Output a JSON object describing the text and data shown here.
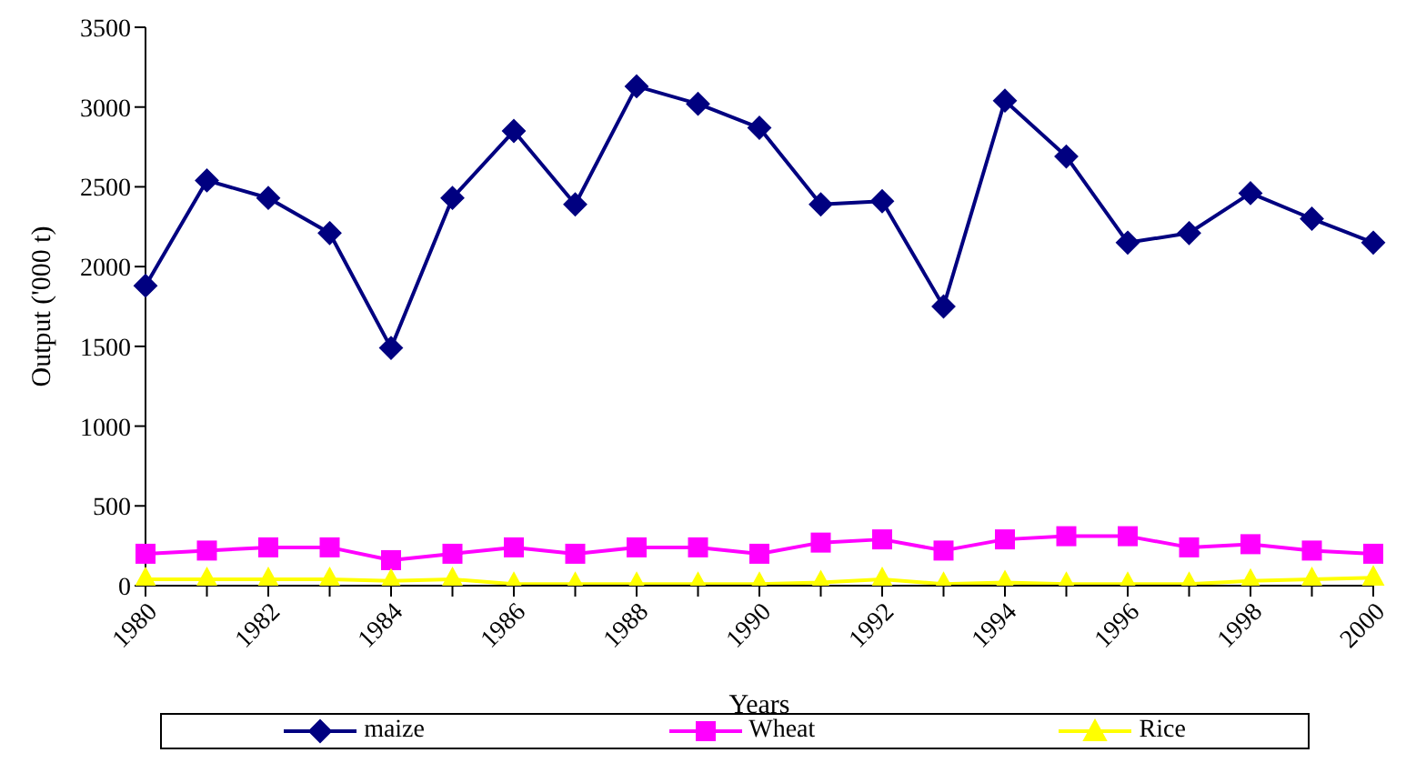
{
  "chart_data": {
    "type": "line",
    "xlabel": "Years",
    "ylabel": "Output ('000 t)",
    "categories": [
      "1980",
      null,
      "1982",
      null,
      "1984",
      null,
      "1986",
      null,
      "1988",
      null,
      "1990",
      null,
      "1992",
      null,
      "1994",
      null,
      "1996",
      null,
      "1998",
      null,
      "2000"
    ],
    "series": [
      {
        "name": "maize",
        "color": "#000080",
        "marker": "diamond",
        "values": [
          1880,
          2540,
          2430,
          2210,
          1490,
          2430,
          2850,
          2390,
          3130,
          3020,
          2870,
          2390,
          2410,
          1750,
          3040,
          2690,
          2150,
          2210,
          2460,
          2300,
          2150
        ]
      },
      {
        "name": "Wheat",
        "color": "#ff00ff",
        "marker": "square",
        "values": [
          200,
          220,
          240,
          240,
          160,
          200,
          240,
          200,
          240,
          240,
          200,
          270,
          290,
          220,
          290,
          310,
          310,
          240,
          260,
          220,
          200
        ]
      },
      {
        "name": "Rice",
        "color": "#ffff00",
        "marker": "triangle",
        "values": [
          40,
          40,
          40,
          40,
          30,
          40,
          10,
          10,
          10,
          10,
          10,
          20,
          40,
          10,
          20,
          10,
          10,
          10,
          30,
          40,
          50
        ]
      }
    ],
    "ylim": [
      0,
      3500
    ],
    "yticks": [
      0,
      500,
      1000,
      1500,
      2000,
      2500,
      3000,
      3500
    ],
    "grid": false,
    "legend": "bottom"
  }
}
